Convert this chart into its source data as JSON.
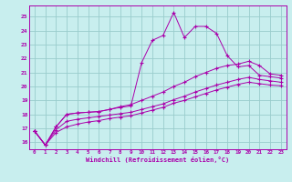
{
  "xlabel": "Windchill (Refroidissement éolien,°C)",
  "bg_color": "#c8eeee",
  "line_color": "#aa00aa",
  "grid_color": "#99cccc",
  "xlim": [
    -0.5,
    23.5
  ],
  "ylim": [
    15.5,
    25.8
  ],
  "yticks": [
    16,
    17,
    18,
    19,
    20,
    21,
    22,
    23,
    24,
    25
  ],
  "xticks": [
    0,
    1,
    2,
    3,
    4,
    5,
    6,
    7,
    8,
    9,
    10,
    11,
    12,
    13,
    14,
    15,
    16,
    17,
    18,
    19,
    20,
    21,
    22,
    23
  ],
  "curve1_x": [
    0,
    1,
    2,
    3,
    4,
    5,
    6,
    7,
    8,
    9,
    10,
    11,
    12,
    13,
    14,
    15,
    16,
    17,
    18,
    19,
    20,
    21,
    22,
    23
  ],
  "curve1_y": [
    16.8,
    15.8,
    17.1,
    18.0,
    18.1,
    18.15,
    18.2,
    18.35,
    18.5,
    18.6,
    21.7,
    23.3,
    23.65,
    25.3,
    23.5,
    24.3,
    24.3,
    23.8,
    22.2,
    21.4,
    21.5,
    20.8,
    20.7,
    20.6
  ],
  "curve2_x": [
    0,
    1,
    2,
    3,
    4,
    5,
    6,
    7,
    8,
    9,
    10,
    11,
    12,
    13,
    14,
    15,
    16,
    17,
    18,
    19,
    20,
    21,
    22,
    23
  ],
  "curve2_y": [
    16.8,
    15.8,
    17.1,
    18.0,
    18.1,
    18.15,
    18.2,
    18.35,
    18.55,
    18.7,
    19.0,
    19.3,
    19.6,
    20.0,
    20.3,
    20.7,
    21.0,
    21.3,
    21.5,
    21.6,
    21.8,
    21.5,
    20.9,
    20.8
  ],
  "curve3_x": [
    0,
    1,
    2,
    3,
    4,
    5,
    6,
    7,
    8,
    9,
    10,
    11,
    12,
    13,
    14,
    15,
    16,
    17,
    18,
    19,
    20,
    21,
    22,
    23
  ],
  "curve3_y": [
    16.8,
    15.8,
    16.9,
    17.5,
    17.65,
    17.75,
    17.85,
    17.95,
    18.05,
    18.15,
    18.35,
    18.55,
    18.75,
    19.05,
    19.3,
    19.6,
    19.85,
    20.1,
    20.3,
    20.5,
    20.65,
    20.5,
    20.4,
    20.3
  ],
  "curve4_x": [
    0,
    1,
    2,
    3,
    4,
    5,
    6,
    7,
    8,
    9,
    10,
    11,
    12,
    13,
    14,
    15,
    16,
    17,
    18,
    19,
    20,
    21,
    22,
    23
  ],
  "curve4_y": [
    16.8,
    15.8,
    16.7,
    17.1,
    17.3,
    17.45,
    17.55,
    17.7,
    17.8,
    17.9,
    18.1,
    18.3,
    18.5,
    18.8,
    19.0,
    19.25,
    19.5,
    19.75,
    19.95,
    20.15,
    20.3,
    20.2,
    20.1,
    20.05
  ]
}
